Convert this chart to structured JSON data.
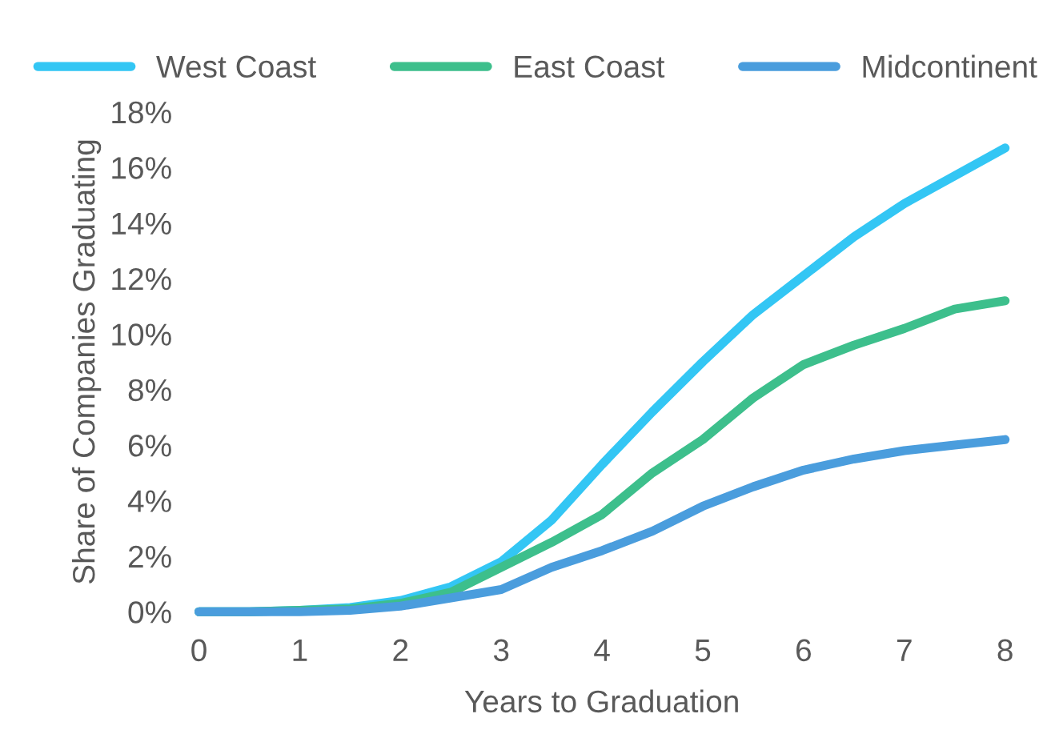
{
  "chart_data": {
    "type": "line",
    "xlabel": "Years to Graduation",
    "ylabel": "Share of Companies Graduating",
    "x": [
      0,
      0.5,
      1,
      1.5,
      2,
      2.5,
      3,
      3.5,
      4,
      4.5,
      5,
      5.5,
      6,
      6.5,
      7,
      7.5,
      8
    ],
    "series": [
      {
        "name": "West Coast",
        "color": "#33c6f4",
        "values": [
          0,
          0,
          0.05,
          0.15,
          0.4,
          0.9,
          1.8,
          3.3,
          5.3,
          7.2,
          9.0,
          10.7,
          12.1,
          13.5,
          14.7,
          15.7,
          16.7
        ]
      },
      {
        "name": "East Coast",
        "color": "#3dbf8c",
        "values": [
          0,
          0,
          0.05,
          0.1,
          0.3,
          0.7,
          1.6,
          2.5,
          3.5,
          5.0,
          6.2,
          7.7,
          8.9,
          9.6,
          10.2,
          10.9,
          11.2
        ]
      },
      {
        "name": "Midcontinent",
        "color": "#4a9ddd",
        "values": [
          0,
          0,
          0,
          0.05,
          0.2,
          0.5,
          0.8,
          1.6,
          2.2,
          2.9,
          3.8,
          4.5,
          5.1,
          5.5,
          5.8,
          6.0,
          6.2
        ]
      }
    ],
    "xlim": [
      0,
      8
    ],
    "xticks": [
      0,
      1,
      2,
      3,
      4,
      5,
      6,
      7,
      8
    ],
    "ylim": [
      0,
      18
    ],
    "yticks": [
      {
        "value": 0,
        "label": "0%"
      },
      {
        "value": 2,
        "label": "2%"
      },
      {
        "value": 4,
        "label": "4%"
      },
      {
        "value": 6,
        "label": "6%"
      },
      {
        "value": 8,
        "label": "8%"
      },
      {
        "value": 10,
        "label": "10%"
      },
      {
        "value": 12,
        "label": "12%"
      },
      {
        "value": 14,
        "label": "14%"
      },
      {
        "value": 16,
        "label": "16%"
      },
      {
        "value": 18,
        "label": "18%"
      }
    ],
    "grid": false,
    "legend": "top",
    "marker": "none",
    "line_style": "solid"
  }
}
